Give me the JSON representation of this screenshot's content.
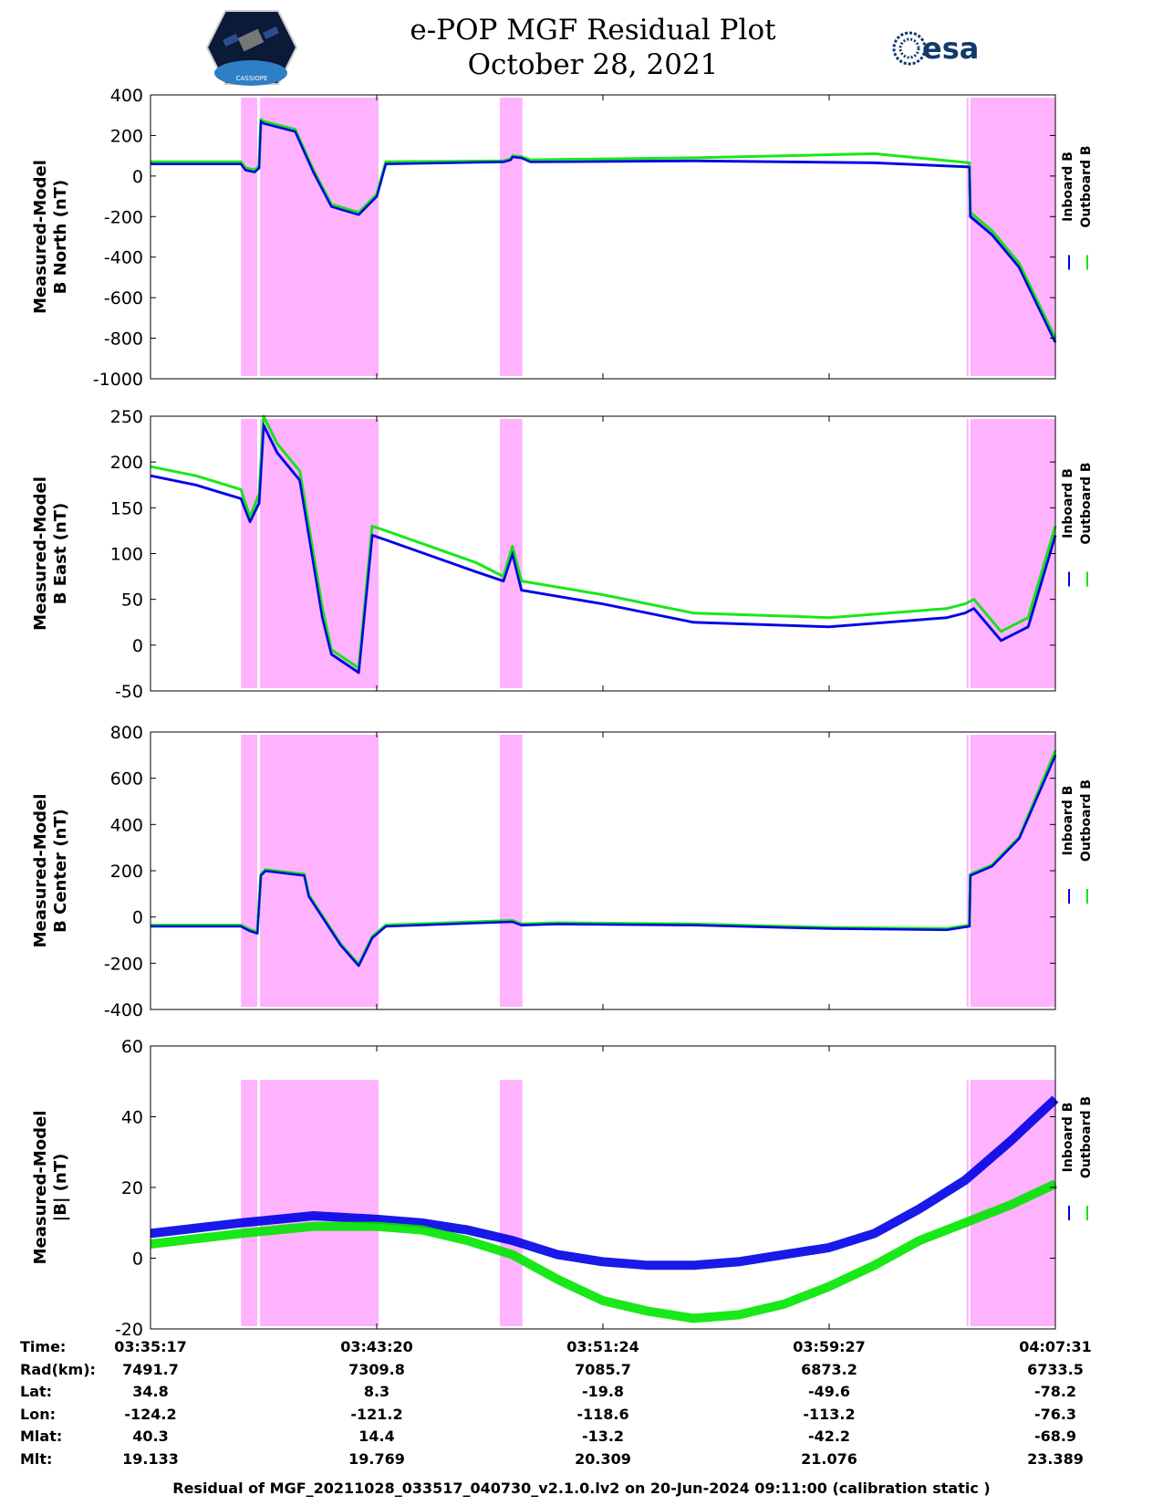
{
  "header": {
    "title_line1": "e-POP MGF Residual Plot",
    "title_line2": "October 28, 2021",
    "logo_left_text": "CASSIOPE",
    "logo_right_text": "esa"
  },
  "legend": {
    "inboard": "Inboard B",
    "outboard": "Outboard B"
  },
  "colors": {
    "inboard": "#0000e6",
    "outboard": "#00e600",
    "shade": "#ffb3ff"
  },
  "shaded_intervals": [
    [
      0.1,
      0.118
    ],
    [
      0.121,
      0.252
    ],
    [
      0.386,
      0.411
    ],
    [
      0.902,
      0.904
    ],
    [
      0.906,
      1.0
    ]
  ],
  "chart_data": [
    {
      "type": "line",
      "ylabel_line1": "Measured-Model",
      "ylabel_line2": "B North (nT)",
      "ylim": [
        -1000,
        400
      ],
      "yticks": [
        "400",
        "200",
        "0",
        "-200",
        "-400",
        "-600",
        "-800",
        "-1000"
      ],
      "ytick_values": [
        400,
        200,
        0,
        -200,
        -400,
        -600,
        -800,
        -1000
      ],
      "x": [
        0.0,
        0.1,
        0.105,
        0.115,
        0.12,
        0.122,
        0.125,
        0.16,
        0.18,
        0.2,
        0.23,
        0.25,
        0.26,
        0.39,
        0.398,
        0.4,
        0.41,
        0.42,
        0.6,
        0.8,
        0.905,
        0.906,
        0.93,
        0.96,
        1.0
      ],
      "series": [
        {
          "name": "Inboard B",
          "values": [
            60,
            60,
            30,
            20,
            40,
            270,
            260,
            220,
            20,
            -150,
            -190,
            -100,
            60,
            70,
            80,
            95,
            90,
            70,
            75,
            65,
            45,
            -200,
            -290,
            -450,
            -820
          ]
        },
        {
          "name": "Outboard B",
          "values": [
            70,
            70,
            40,
            30,
            50,
            280,
            270,
            230,
            30,
            -140,
            -180,
            -90,
            70,
            75,
            85,
            100,
            95,
            80,
            90,
            110,
            65,
            -180,
            -270,
            -430,
            -800
          ]
        }
      ]
    },
    {
      "type": "line",
      "ylabel_line1": "Measured-Model",
      "ylabel_line2": "B East (nT)",
      "ylim": [
        -50,
        250
      ],
      "yticks": [
        "250",
        "200",
        "150",
        "100",
        "50",
        "0",
        "-50"
      ],
      "ytick_values": [
        250,
        200,
        150,
        100,
        50,
        0,
        -50
      ],
      "x": [
        0.0,
        0.05,
        0.1,
        0.11,
        0.12,
        0.125,
        0.14,
        0.165,
        0.19,
        0.2,
        0.23,
        0.245,
        0.26,
        0.36,
        0.39,
        0.4,
        0.41,
        0.5,
        0.6,
        0.75,
        0.88,
        0.9,
        0.91,
        0.94,
        0.97,
        1.0
      ],
      "series": [
        {
          "name": "Inboard B",
          "values": [
            185,
            175,
            160,
            135,
            155,
            240,
            210,
            180,
            30,
            -10,
            -30,
            120,
            115,
            80,
            70,
            100,
            60,
            45,
            25,
            20,
            30,
            35,
            40,
            5,
            20,
            120
          ]
        },
        {
          "name": "Outboard B",
          "values": [
            195,
            185,
            170,
            140,
            165,
            250,
            220,
            190,
            40,
            -5,
            -25,
            130,
            125,
            90,
            75,
            108,
            70,
            55,
            35,
            30,
            40,
            45,
            50,
            15,
            30,
            130
          ]
        }
      ]
    },
    {
      "type": "line",
      "ylabel_line1": "Measured-Model",
      "ylabel_line2": "B Center (nT)",
      "ylim": [
        -400,
        800
      ],
      "yticks": [
        "800",
        "600",
        "400",
        "200",
        "0",
        "-200",
        "-400"
      ],
      "ytick_values": [
        800,
        600,
        400,
        200,
        0,
        -200,
        -400
      ],
      "x": [
        0.0,
        0.1,
        0.11,
        0.118,
        0.122,
        0.127,
        0.17,
        0.175,
        0.2,
        0.21,
        0.23,
        0.245,
        0.26,
        0.4,
        0.41,
        0.45,
        0.6,
        0.75,
        0.88,
        0.905,
        0.906,
        0.93,
        0.96,
        1.0
      ],
      "series": [
        {
          "name": "Inboard B",
          "values": [
            -40,
            -40,
            -60,
            -70,
            180,
            200,
            180,
            90,
            -60,
            -120,
            -210,
            -90,
            -40,
            -20,
            -35,
            -30,
            -35,
            -50,
            -55,
            -40,
            180,
            220,
            340,
            700
          ]
        },
        {
          "name": "Outboard B",
          "values": [
            -35,
            -35,
            -55,
            -65,
            185,
            205,
            185,
            95,
            -55,
            -115,
            -205,
            -85,
            -35,
            -15,
            -30,
            -25,
            -30,
            -45,
            -50,
            -35,
            185,
            225,
            345,
            720
          ]
        }
      ]
    },
    {
      "type": "line",
      "ylabel_line1": "Measured-Model",
      "ylabel_line2": "|B| (nT)",
      "ylim": [
        -20,
        60
      ],
      "yticks": [
        "60",
        "40",
        "20",
        "0",
        "-20"
      ],
      "ytick_values": [
        60,
        40,
        20,
        0,
        -20
      ],
      "x": [
        0.0,
        0.1,
        0.18,
        0.25,
        0.3,
        0.35,
        0.4,
        0.45,
        0.5,
        0.55,
        0.6,
        0.65,
        0.7,
        0.75,
        0.8,
        0.85,
        0.9,
        0.95,
        1.0
      ],
      "series": [
        {
          "name": "Inboard B",
          "values": [
            7,
            10,
            12,
            11,
            10,
            8,
            5,
            1,
            -1,
            -2,
            -2,
            -1,
            1,
            3,
            7,
            14,
            22,
            33,
            45
          ]
        },
        {
          "name": "Outboard B",
          "values": [
            4,
            7,
            9,
            9,
            8,
            5,
            1,
            -6,
            -12,
            -15,
            -17,
            -16,
            -13,
            -8,
            -2,
            5,
            10,
            15,
            21
          ]
        }
      ]
    }
  ],
  "x_axis_info": {
    "rows": [
      {
        "label": "Time:",
        "values": [
          "03:35:17",
          "03:43:20",
          "03:51:24",
          "03:59:27",
          "04:07:31"
        ]
      },
      {
        "label": "Rad(km):",
        "values": [
          "7491.7",
          "7309.8",
          "7085.7",
          "6873.2",
          "6733.5"
        ]
      },
      {
        "label": "Lat:",
        "values": [
          "34.8",
          "8.3",
          "-19.8",
          "-49.6",
          "-78.2"
        ]
      },
      {
        "label": "Lon:",
        "values": [
          "-124.2",
          "-121.2",
          "-118.6",
          "-113.2",
          "-76.3"
        ]
      },
      {
        "label": "Mlat:",
        "values": [
          "40.3",
          "14.4",
          "-13.2",
          "-42.2",
          "-68.9"
        ]
      },
      {
        "label": "Mlt:",
        "values": [
          "19.133",
          "19.769",
          "20.309",
          "21.076",
          "23.389"
        ]
      }
    ]
  },
  "footer": "Residual of MGF_20211028_033517_040730_v2.1.0.lv2 on 20-Jun-2024 09:11:00 (calibration static )"
}
